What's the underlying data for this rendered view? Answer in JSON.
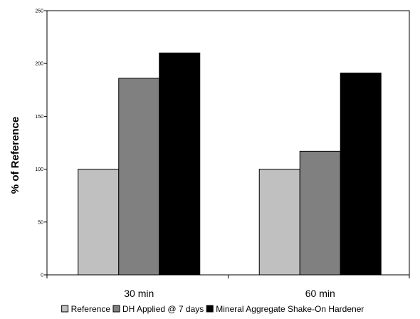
{
  "chart_data": {
    "type": "bar",
    "title": "",
    "xlabel": "",
    "ylabel": "% of Reference",
    "ylim": [
      0,
      250
    ],
    "yticks": [
      0,
      50,
      100,
      150,
      200,
      250
    ],
    "grid": false,
    "legend_position": "bottom",
    "categories": [
      "30 min",
      "60 min"
    ],
    "series": [
      {
        "name": "Reference",
        "values": [
          100,
          100
        ],
        "color": "#c0c0c0"
      },
      {
        "name": "DH Applied @ 7 days",
        "values": [
          186,
          117
        ],
        "color": "#808080"
      },
      {
        "name": "Mineral Aggregate Shake-On Hardener",
        "values": [
          210,
          191
        ],
        "color": "#000000"
      }
    ]
  }
}
